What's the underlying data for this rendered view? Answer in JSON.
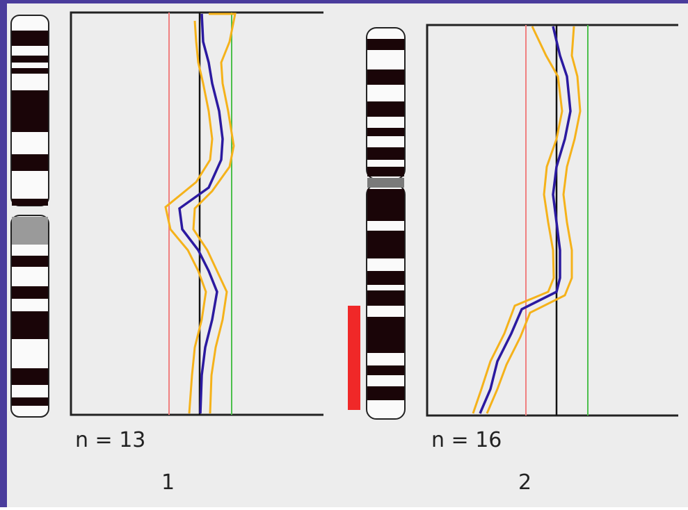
{
  "panels": [
    {
      "count_label": "n = 13",
      "label": "1"
    },
    {
      "count_label": "n = 16",
      "label": "2"
    }
  ]
}
